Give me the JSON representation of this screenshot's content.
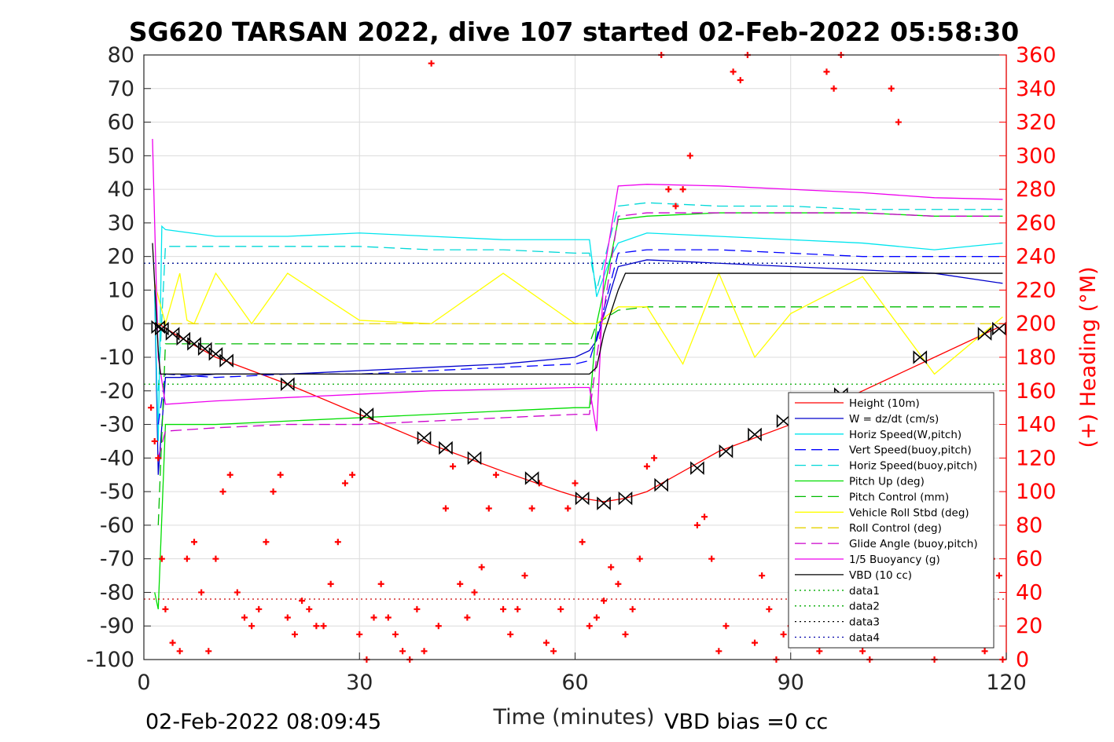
{
  "chart_data": {
    "type": "line",
    "title": "SG620 TARSAN 2022, dive 107 started 02-Feb-2022 05:58:30",
    "xlabel": "Time (minutes)",
    "ylabel": "",
    "y2label": "(+) Heading (°M)",
    "footer_left": "02-Feb-2022 08:09:45",
    "footer_right": "VBD bias =0 cc",
    "xlim": [
      0,
      120
    ],
    "ylim": [
      -100,
      80
    ],
    "y2lim": [
      0,
      360
    ],
    "xticks": [
      "0",
      "30",
      "60",
      "90",
      "120"
    ],
    "yticks": [
      "80",
      "70",
      "60",
      "50",
      "40",
      "30",
      "20",
      "10",
      "0",
      "-10",
      "-20",
      "-30",
      "-40",
      "-50",
      "-60",
      "-70",
      "-80",
      "-90",
      "-100"
    ],
    "y2ticks": [
      "360",
      "340",
      "320",
      "300",
      "280",
      "260",
      "240",
      "220",
      "200",
      "180",
      "160",
      "140",
      "120",
      "100",
      "80",
      "60",
      "40",
      "20",
      "0"
    ],
    "grid": true,
    "legend_position": "right",
    "colors": {
      "height": "#ff0000",
      "w": "#0000cc",
      "horiz": "#00e5ee",
      "vert_buoy": "#0000ff",
      "horiz_buoy": "#00d8d8",
      "pitch": "#00dd00",
      "pitch_ctrl": "#00bb00",
      "roll": "#ffff00",
      "roll_ctrl": "#e6d200",
      "glide": "#cc00cc",
      "buoyancy": "#ee00ee",
      "vbd": "#000000",
      "heading": "#ff0000"
    },
    "series": [
      {
        "name": "Height (10m)",
        "key": "height",
        "style": "solid",
        "x": [
          2,
          5,
          10,
          20,
          30,
          40,
          50,
          58,
          61,
          64,
          67,
          70,
          80,
          90,
          100,
          110,
          118,
          119
        ],
        "y": [
          0,
          -4,
          -10,
          -18,
          -27,
          -36,
          -44,
          -50,
          -52,
          -53,
          -52,
          -50,
          -38,
          -30,
          -20,
          -10,
          -2,
          -1
        ]
      },
      {
        "name": "W = dz/dt (cm/s)",
        "key": "w",
        "style": "solid",
        "x": [
          1.5,
          2,
          3,
          5,
          10,
          20,
          30,
          40,
          50,
          60,
          62,
          63,
          65,
          66,
          70,
          80,
          90,
          100,
          110,
          119.5
        ],
        "y": [
          10,
          -45,
          -16,
          -16,
          -15,
          -15,
          -14,
          -13,
          -12,
          -10,
          -8,
          -5,
          10,
          17,
          19,
          18,
          17,
          16,
          15,
          12
        ]
      },
      {
        "name": "Horiz Speed(W,pitch)",
        "key": "horiz",
        "style": "solid",
        "x": [
          1.5,
          2,
          2.5,
          3,
          10,
          20,
          30,
          40,
          50,
          60,
          62,
          63,
          65,
          66,
          70,
          80,
          90,
          100,
          110,
          119.5
        ],
        "y": [
          10,
          -35,
          29,
          28,
          26,
          26,
          27,
          26,
          25,
          25,
          25,
          8,
          20,
          24,
          27,
          26,
          25,
          24,
          22,
          24
        ]
      },
      {
        "name": "Vert Speed(buoy,pitch)",
        "key": "vert_buoy",
        "style": "dashed",
        "x": [
          2,
          3,
          10,
          20,
          30,
          40,
          50,
          60,
          62,
          63,
          66,
          70,
          80,
          90,
          100,
          110,
          119.5
        ],
        "y": [
          -30,
          -15,
          -16,
          -15,
          -15,
          -14,
          -13,
          -12,
          -11,
          -4,
          21,
          22,
          22,
          21,
          20,
          20,
          20
        ]
      },
      {
        "name": "Horiz Speed(buoy,pitch)",
        "key": "horiz_buoy",
        "style": "dashed",
        "x": [
          2,
          3,
          10,
          20,
          30,
          40,
          50,
          60,
          62,
          63,
          66,
          70,
          80,
          90,
          100,
          110,
          119.5
        ],
        "y": [
          -20,
          23,
          23,
          23,
          23,
          22,
          22,
          21,
          21,
          10,
          35,
          36,
          35,
          35,
          34,
          34,
          34
        ]
      },
      {
        "name": "Pitch Up (deg)",
        "key": "pitch",
        "style": "solid",
        "x": [
          1.5,
          2,
          3,
          10,
          20,
          30,
          40,
          50,
          60,
          62,
          63,
          65,
          66,
          70,
          80,
          90,
          100,
          110,
          119.5
        ],
        "y": [
          -80,
          -85,
          -30,
          -30,
          -29,
          -28,
          -27,
          -26,
          -25,
          -25,
          0,
          20,
          31,
          32,
          33,
          33,
          33,
          32,
          32
        ]
      },
      {
        "name": "Pitch Control (mm)",
        "key": "pitch_ctrl",
        "style": "dashed",
        "x": [
          2,
          3,
          10,
          20,
          30,
          40,
          50,
          60,
          62,
          63,
          66,
          70,
          80,
          90,
          100,
          110,
          119.5
        ],
        "y": [
          -60,
          -6,
          -6,
          -6,
          -6,
          -6,
          -6,
          -6,
          -6,
          0,
          4,
          5,
          5,
          5,
          5,
          5,
          5
        ]
      },
      {
        "name": "Vehicle Roll Stbd (deg)",
        "key": "roll",
        "style": "solid",
        "x": [
          1.5,
          3,
          5,
          6,
          7,
          10,
          15,
          20,
          30,
          40,
          50,
          60,
          63,
          66,
          70,
          75,
          80,
          85,
          90,
          100,
          110,
          119.5
        ],
        "y": [
          12,
          0,
          15,
          1,
          0,
          15,
          0,
          15,
          1,
          0,
          15,
          0,
          0,
          5,
          5,
          -12,
          15,
          -10,
          3,
          14,
          -15,
          2
        ]
      },
      {
        "name": "Roll Control (deg)",
        "key": "roll_ctrl",
        "style": "dashed",
        "x": [
          1.5,
          10,
          20,
          30,
          40,
          50,
          60,
          70,
          80,
          90,
          100,
          110,
          119.5
        ],
        "y": [
          0,
          0,
          0,
          0,
          0,
          0,
          0,
          0,
          0,
          0,
          0,
          0,
          0
        ]
      },
      {
        "name": "Glide Angle (buoy,pitch)",
        "key": "glide",
        "style": "dashed",
        "x": [
          2,
          3,
          10,
          20,
          30,
          40,
          50,
          60,
          62,
          63,
          66,
          70,
          80,
          90,
          100,
          110,
          119.5
        ],
        "y": [
          -40,
          -32,
          -31,
          -30,
          -30,
          -29,
          -28,
          -27,
          -27,
          -10,
          32,
          33,
          33,
          33,
          33,
          32,
          32
        ]
      },
      {
        "name": "1/5 Buoyancy (g)",
        "key": "buoyancy",
        "style": "solid",
        "x": [
          1.2,
          1.5,
          2,
          3,
          10,
          20,
          30,
          40,
          50,
          60,
          62,
          63,
          64,
          66,
          70,
          80,
          90,
          100,
          110,
          119.5
        ],
        "y": [
          55,
          30,
          -10,
          -24,
          -23,
          -22,
          -21,
          -20,
          -19.5,
          -19,
          -19,
          -32,
          15,
          41,
          41.5,
          41,
          40,
          39,
          37.5,
          37
        ]
      },
      {
        "name": "VBD (10 cc)",
        "key": "vbd",
        "style": "solid",
        "x": [
          1.2,
          2,
          2.3,
          3,
          10,
          20,
          30,
          40,
          50,
          60,
          62,
          63,
          64,
          66,
          67,
          70,
          80,
          90,
          100,
          110,
          119.5
        ],
        "y": [
          24,
          -8,
          -15,
          -15,
          -15,
          -15,
          -15,
          -15,
          -15,
          -15,
          -15,
          -13,
          -3,
          10,
          15,
          15,
          15,
          15,
          15,
          15,
          15
        ]
      },
      {
        "name": "data1",
        "key": "data1",
        "style": "dotted",
        "x": [
          0,
          120
        ],
        "y": [
          18,
          18
        ]
      },
      {
        "name": "data2",
        "key": "data2",
        "style": "dotted",
        "x": [
          0,
          120
        ],
        "y": [
          -18,
          -18
        ]
      },
      {
        "name": "data3",
        "key": "data3",
        "style": "dotted",
        "x": [
          0,
          120
        ],
        "y": [
          -82,
          -82
        ]
      },
      {
        "name": "data4",
        "key": "data4",
        "style": "dotted",
        "x": [
          0,
          120
        ],
        "y": [
          18,
          18
        ]
      }
    ],
    "height_markers": {
      "x": [
        2,
        2.5,
        4,
        5.5,
        7,
        8.5,
        10,
        11.5,
        20,
        31,
        39,
        42,
        46,
        54,
        61,
        64,
        67,
        72,
        77,
        81,
        85,
        89,
        97,
        108,
        117,
        119
      ],
      "y": [
        -1,
        -1.5,
        -3,
        -4.5,
        -6,
        -7.5,
        -9,
        -11,
        -18,
        -27,
        -34,
        -37,
        -40,
        -46,
        -52,
        -53.5,
        -52,
        -48,
        -43,
        -38,
        -33,
        -29,
        -21,
        -10,
        -3,
        -1.5
      ]
    },
    "heading": {
      "name": "(+) Heading (°M)",
      "x": [
        1,
        1.5,
        2,
        2.5,
        3,
        4,
        5,
        6,
        7,
        8,
        9,
        10,
        11,
        12,
        13,
        14,
        15,
        16,
        17,
        18,
        19,
        20,
        21,
        22,
        23,
        24,
        25,
        26,
        27,
        28,
        29,
        30,
        31,
        32,
        33,
        34,
        35,
        36,
        37,
        38,
        39,
        40,
        41,
        42,
        43,
        44,
        45,
        46,
        47,
        48,
        49,
        50,
        51,
        52,
        53,
        54,
        55,
        56,
        57,
        58,
        59,
        60,
        61,
        62,
        63,
        64,
        65,
        66,
        67,
        68,
        69,
        70,
        71,
        72,
        73,
        74,
        75,
        76,
        77,
        78,
        79,
        80,
        81,
        82,
        83,
        84,
        85,
        86,
        87,
        88,
        89,
        90,
        91,
        92,
        93,
        94,
        95,
        96,
        97,
        98,
        99,
        100,
        101,
        102,
        103,
        104,
        105,
        106,
        107,
        108,
        109,
        110,
        111,
        112,
        113,
        114,
        115,
        116,
        117,
        118,
        119,
        119.5
      ],
      "y": [
        150,
        130,
        120,
        60,
        30,
        10,
        5,
        60,
        70,
        40,
        5,
        60,
        100,
        110,
        40,
        25,
        20,
        30,
        70,
        100,
        110,
        25,
        15,
        35,
        30,
        20,
        20,
        45,
        70,
        105,
        110,
        15,
        0,
        25,
        45,
        25,
        15,
        5,
        0,
        30,
        5,
        355,
        20,
        90,
        115,
        45,
        25,
        40,
        55,
        90,
        110,
        30,
        15,
        30,
        50,
        90,
        105,
        10,
        5,
        30,
        90,
        105,
        70,
        20,
        25,
        35,
        55,
        45,
        15,
        30,
        60,
        115,
        120,
        360,
        280,
        270,
        280,
        300,
        80,
        85,
        60,
        5,
        20,
        350,
        345,
        360,
        10,
        50,
        30,
        0,
        15,
        20,
        60,
        90,
        110,
        5,
        350,
        340,
        360,
        20,
        40,
        5,
        0,
        10,
        20,
        340,
        320,
        60,
        70,
        30,
        10,
        0,
        30,
        60,
        80,
        110,
        40,
        20,
        5,
        60,
        50,
        0
      ]
    }
  }
}
